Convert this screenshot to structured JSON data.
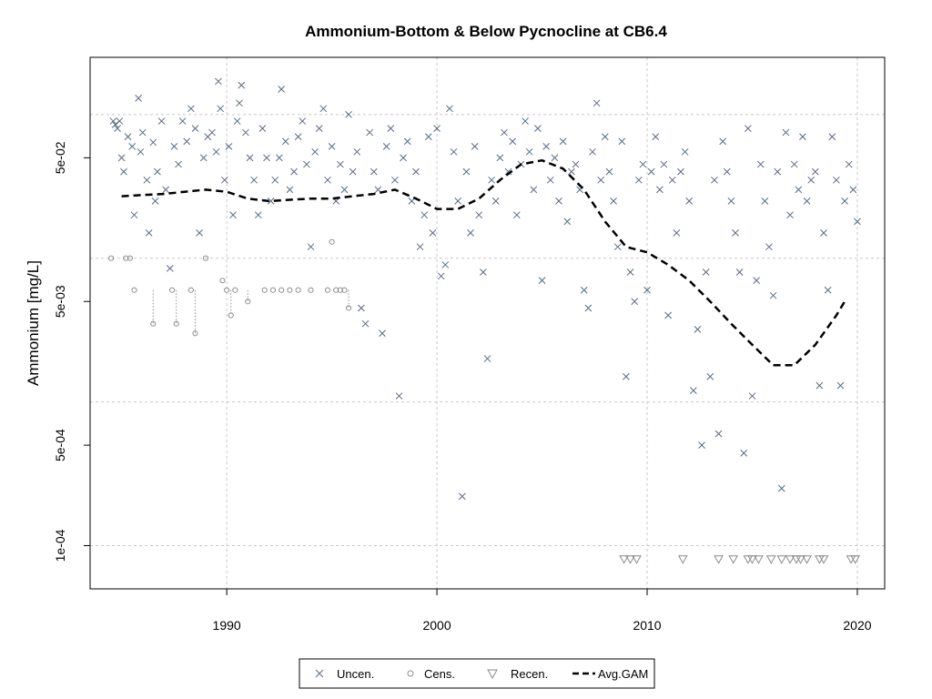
{
  "chart_data": {
    "type": "scatter",
    "title": "Ammonium-Bottom & Below Pycnocline at CB6.4",
    "xlabel": "",
    "ylabel": "Ammonium [mg/L]",
    "xlim": [
      1983.5,
      2021.3
    ],
    "ylim": [
      5e-05,
      0.25
    ],
    "yscale": "log",
    "xticks": [
      1990,
      2000,
      2010,
      2020
    ],
    "xtick_labels": [
      "1990",
      "2000",
      "2010",
      "2020"
    ],
    "yticks": [
      0.0001,
      0.0005,
      0.005,
      0.05
    ],
    "ytick_labels": [
      "1e-04",
      "5e-04",
      "5e-03",
      "5e-02"
    ],
    "ygrid": [
      0.0001,
      0.001,
      0.01,
      0.1
    ],
    "xgrid": [
      1990,
      2000,
      2010,
      2020
    ],
    "grid": true,
    "legend_placement": "bottom-center",
    "colors": {
      "uncensored": "#5a6a84",
      "censored": "#8f8f8f",
      "recensored": "#8a8a8a",
      "gam": "#000000",
      "grid": "#c8c8c8"
    },
    "series": [
      {
        "name": "Uncen.",
        "marker": "x",
        "points": [
          [
            1984.6,
            0.09
          ],
          [
            1984.7,
            0.085
          ],
          [
            1984.8,
            0.08
          ],
          [
            1984.9,
            0.09
          ],
          [
            1985.0,
            0.05
          ],
          [
            1985.1,
            0.04
          ],
          [
            1985.3,
            0.07
          ],
          [
            1985.5,
            0.06
          ],
          [
            1985.6,
            0.02
          ],
          [
            1985.8,
            0.13
          ],
          [
            1985.9,
            0.055
          ],
          [
            1986.0,
            0.075
          ],
          [
            1986.2,
            0.035
          ],
          [
            1986.3,
            0.015
          ],
          [
            1986.5,
            0.064
          ],
          [
            1986.6,
            0.025
          ],
          [
            1986.7,
            0.04
          ],
          [
            1986.9,
            0.09
          ],
          [
            1987.1,
            0.03
          ],
          [
            1987.3,
            0.0085
          ],
          [
            1987.5,
            0.06
          ],
          [
            1987.7,
            0.045
          ],
          [
            1987.9,
            0.09
          ],
          [
            1988.1,
            0.065
          ],
          [
            1988.3,
            0.11
          ],
          [
            1988.5,
            0.08
          ],
          [
            1988.7,
            0.015
          ],
          [
            1988.9,
            0.05
          ],
          [
            1989.1,
            0.07
          ],
          [
            1989.3,
            0.075
          ],
          [
            1989.5,
            0.055
          ],
          [
            1989.6,
            0.17
          ],
          [
            1989.7,
            0.11
          ],
          [
            1989.9,
            0.035
          ],
          [
            1990.1,
            0.06
          ],
          [
            1990.3,
            0.02
          ],
          [
            1990.5,
            0.09
          ],
          [
            1990.6,
            0.12
          ],
          [
            1990.7,
            0.16
          ],
          [
            1990.9,
            0.075
          ],
          [
            1991.1,
            0.05
          ],
          [
            1991.3,
            0.035
          ],
          [
            1991.5,
            0.02
          ],
          [
            1991.7,
            0.08
          ],
          [
            1991.9,
            0.05
          ],
          [
            1992.1,
            0.025
          ],
          [
            1992.3,
            0.035
          ],
          [
            1992.5,
            0.05
          ],
          [
            1992.6,
            0.15
          ],
          [
            1992.8,
            0.065
          ],
          [
            1993.0,
            0.03
          ],
          [
            1993.2,
            0.04
          ],
          [
            1993.4,
            0.07
          ],
          [
            1993.6,
            0.09
          ],
          [
            1993.8,
            0.045
          ],
          [
            1994.0,
            0.012
          ],
          [
            1994.2,
            0.055
          ],
          [
            1994.4,
            0.08
          ],
          [
            1994.6,
            0.11
          ],
          [
            1994.8,
            0.035
          ],
          [
            1995.0,
            0.06
          ],
          [
            1995.2,
            0.025
          ],
          [
            1995.4,
            0.045
          ],
          [
            1995.6,
            0.03
          ],
          [
            1995.8,
            0.1
          ],
          [
            1996.0,
            0.04
          ],
          [
            1996.2,
            0.055
          ],
          [
            1996.4,
            0.0045
          ],
          [
            1996.6,
            0.0035
          ],
          [
            1996.8,
            0.075
          ],
          [
            1997.0,
            0.04
          ],
          [
            1997.2,
            0.03
          ],
          [
            1997.4,
            0.003
          ],
          [
            1997.6,
            0.06
          ],
          [
            1997.8,
            0.08
          ],
          [
            1998.0,
            0.035
          ],
          [
            1998.2,
            0.0011
          ],
          [
            1998.4,
            0.05
          ],
          [
            1998.6,
            0.065
          ],
          [
            1998.8,
            0.025
          ],
          [
            1999.0,
            0.04
          ],
          [
            1999.2,
            0.012
          ],
          [
            1999.4,
            0.02
          ],
          [
            1999.6,
            0.07
          ],
          [
            1999.8,
            0.015
          ],
          [
            2000.0,
            0.08
          ],
          [
            2000.2,
            0.0075
          ],
          [
            2000.4,
            0.009
          ],
          [
            2000.6,
            0.11
          ],
          [
            2000.8,
            0.055
          ],
          [
            2001.0,
            0.025
          ],
          [
            2001.2,
            0.00022
          ],
          [
            2001.4,
            0.04
          ],
          [
            2001.6,
            0.015
          ],
          [
            2001.8,
            0.06
          ],
          [
            2002.0,
            0.02
          ],
          [
            2002.2,
            0.008
          ],
          [
            2002.4,
            0.002
          ],
          [
            2002.6,
            0.035
          ],
          [
            2002.8,
            0.025
          ],
          [
            2003.0,
            0.05
          ],
          [
            2003.2,
            0.075
          ],
          [
            2003.4,
            0.04
          ],
          [
            2003.6,
            0.065
          ],
          [
            2003.8,
            0.02
          ],
          [
            2004.0,
            0.045
          ],
          [
            2004.2,
            0.09
          ],
          [
            2004.4,
            0.055
          ],
          [
            2004.6,
            0.03
          ],
          [
            2004.8,
            0.08
          ],
          [
            2005.0,
            0.007
          ],
          [
            2005.2,
            0.06
          ],
          [
            2005.4,
            0.035
          ],
          [
            2005.6,
            0.05
          ],
          [
            2005.8,
            0.025
          ],
          [
            2006.0,
            0.065
          ],
          [
            2006.2,
            0.018
          ],
          [
            2006.4,
            0.04
          ],
          [
            2006.6,
            0.045
          ],
          [
            2006.8,
            0.03
          ],
          [
            2007.0,
            0.006
          ],
          [
            2007.2,
            0.0045
          ],
          [
            2007.4,
            0.055
          ],
          [
            2007.6,
            0.12
          ],
          [
            2007.8,
            0.035
          ],
          [
            2008.0,
            0.07
          ],
          [
            2008.2,
            0.04
          ],
          [
            2008.4,
            0.025
          ],
          [
            2008.6,
            0.012
          ],
          [
            2008.8,
            0.065
          ],
          [
            2009.0,
            0.0015
          ],
          [
            2009.2,
            0.008
          ],
          [
            2009.4,
            0.005
          ],
          [
            2009.6,
            0.035
          ],
          [
            2009.8,
            0.045
          ],
          [
            2010.0,
            0.006
          ],
          [
            2010.2,
            0.04
          ],
          [
            2010.4,
            0.07
          ],
          [
            2010.6,
            0.03
          ],
          [
            2010.8,
            0.045
          ],
          [
            2011.0,
            0.004
          ],
          [
            2011.2,
            0.035
          ],
          [
            2011.4,
            0.015
          ],
          [
            2011.6,
            0.04
          ],
          [
            2011.8,
            0.055
          ],
          [
            2012.0,
            0.025
          ],
          [
            2012.2,
            0.0012
          ],
          [
            2012.4,
            0.0032
          ],
          [
            2012.6,
            0.0005
          ],
          [
            2012.8,
            0.008
          ],
          [
            2013.0,
            0.0015
          ],
          [
            2013.2,
            0.035
          ],
          [
            2013.4,
            0.0006
          ],
          [
            2013.6,
            0.065
          ],
          [
            2013.8,
            0.04
          ],
          [
            2014.0,
            0.025
          ],
          [
            2014.2,
            0.015
          ],
          [
            2014.4,
            0.008
          ],
          [
            2014.6,
            0.00044
          ],
          [
            2014.8,
            0.08
          ],
          [
            2015.0,
            0.0011
          ],
          [
            2015.2,
            0.007
          ],
          [
            2015.4,
            0.045
          ],
          [
            2015.6,
            0.025
          ],
          [
            2015.8,
            0.012
          ],
          [
            2016.0,
            0.0055
          ],
          [
            2016.2,
            0.04
          ],
          [
            2016.4,
            0.00025
          ],
          [
            2016.6,
            0.075
          ],
          [
            2016.8,
            0.02
          ],
          [
            2017.0,
            0.045
          ],
          [
            2017.2,
            0.03
          ],
          [
            2017.4,
            0.07
          ],
          [
            2017.6,
            0.025
          ],
          [
            2017.8,
            0.035
          ],
          [
            2018.0,
            0.04
          ],
          [
            2018.2,
            0.0013
          ],
          [
            2018.4,
            0.015
          ],
          [
            2018.6,
            0.006
          ],
          [
            2018.8,
            0.07
          ],
          [
            2019.0,
            0.035
          ],
          [
            2019.2,
            0.0013
          ],
          [
            2019.4,
            0.025
          ],
          [
            2019.6,
            0.045
          ],
          [
            2019.8,
            0.03
          ],
          [
            2020.0,
            0.018
          ]
        ]
      },
      {
        "name": "Cens.",
        "marker": "circle-open",
        "points": [
          [
            1984.5,
            0.01
          ],
          [
            1985.2,
            0.01
          ],
          [
            1985.4,
            0.01
          ],
          [
            1985.6,
            0.006
          ],
          [
            1986.5,
            0.0035
          ],
          [
            1987.4,
            0.006
          ],
          [
            1987.6,
            0.0035
          ],
          [
            1988.3,
            0.006
          ],
          [
            1988.5,
            0.003
          ],
          [
            1989.0,
            0.01
          ],
          [
            1989.8,
            0.007
          ],
          [
            1990.0,
            0.006
          ],
          [
            1990.2,
            0.004
          ],
          [
            1990.4,
            0.006
          ],
          [
            1991.0,
            0.005
          ],
          [
            1991.8,
            0.006
          ],
          [
            1992.2,
            0.006
          ],
          [
            1992.6,
            0.006
          ],
          [
            1993.0,
            0.006
          ],
          [
            1993.4,
            0.006
          ],
          [
            1994.0,
            0.006
          ],
          [
            1994.8,
            0.006
          ],
          [
            1995.0,
            0.013
          ],
          [
            1995.2,
            0.006
          ],
          [
            1995.4,
            0.006
          ],
          [
            1995.6,
            0.006
          ],
          [
            1995.8,
            0.0045
          ]
        ]
      },
      {
        "name": "Recen.",
        "marker": "triangle-down-open",
        "points": [
          [
            2008.9,
            8e-05
          ],
          [
            2009.2,
            8e-05
          ],
          [
            2009.5,
            8e-05
          ],
          [
            2011.7,
            8e-05
          ],
          [
            2013.4,
            8e-05
          ],
          [
            2014.1,
            8e-05
          ],
          [
            2014.8,
            8e-05
          ],
          [
            2015.0,
            8e-05
          ],
          [
            2015.3,
            8e-05
          ],
          [
            2015.9,
            8e-05
          ],
          [
            2016.4,
            8e-05
          ],
          [
            2016.8,
            8e-05
          ],
          [
            2017.1,
            8e-05
          ],
          [
            2017.3,
            8e-05
          ],
          [
            2017.6,
            8e-05
          ],
          [
            2018.2,
            8e-05
          ],
          [
            2018.4,
            8e-05
          ],
          [
            2019.7,
            8e-05
          ],
          [
            2019.9,
            8e-05
          ]
        ]
      },
      {
        "name": "Avg.GAM",
        "line": "dashed",
        "points": [
          [
            1985.0,
            0.027
          ],
          [
            1986.0,
            0.0275
          ],
          [
            1987.0,
            0.028
          ],
          [
            1988.0,
            0.029
          ],
          [
            1989.0,
            0.03
          ],
          [
            1990.0,
            0.029
          ],
          [
            1991.0,
            0.026
          ],
          [
            1992.0,
            0.025
          ],
          [
            1993.0,
            0.0255
          ],
          [
            1994.0,
            0.026
          ],
          [
            1995.0,
            0.026
          ],
          [
            1996.0,
            0.027
          ],
          [
            1997.0,
            0.028
          ],
          [
            1998.0,
            0.03
          ],
          [
            1999.0,
            0.026
          ],
          [
            2000.0,
            0.022
          ],
          [
            2001.0,
            0.022
          ],
          [
            2002.0,
            0.026
          ],
          [
            2003.0,
            0.035
          ],
          [
            2004.0,
            0.045
          ],
          [
            2005.0,
            0.048
          ],
          [
            2006.0,
            0.042
          ],
          [
            2007.0,
            0.03
          ],
          [
            2008.0,
            0.018
          ],
          [
            2009.0,
            0.012
          ],
          [
            2010.0,
            0.011
          ],
          [
            2011.0,
            0.009
          ],
          [
            2012.0,
            0.007
          ],
          [
            2013.0,
            0.005
          ],
          [
            2014.0,
            0.0035
          ],
          [
            2015.0,
            0.0025
          ],
          [
            2016.0,
            0.0018
          ],
          [
            2017.0,
            0.0018
          ],
          [
            2018.0,
            0.0025
          ],
          [
            2019.0,
            0.004
          ],
          [
            2019.4,
            0.005
          ]
        ]
      }
    ]
  },
  "legend": {
    "uncensored_label": "Uncen.",
    "censored_label": "Cens.",
    "recensored_label": "Recen.",
    "gam_label": "Avg.GAM"
  }
}
